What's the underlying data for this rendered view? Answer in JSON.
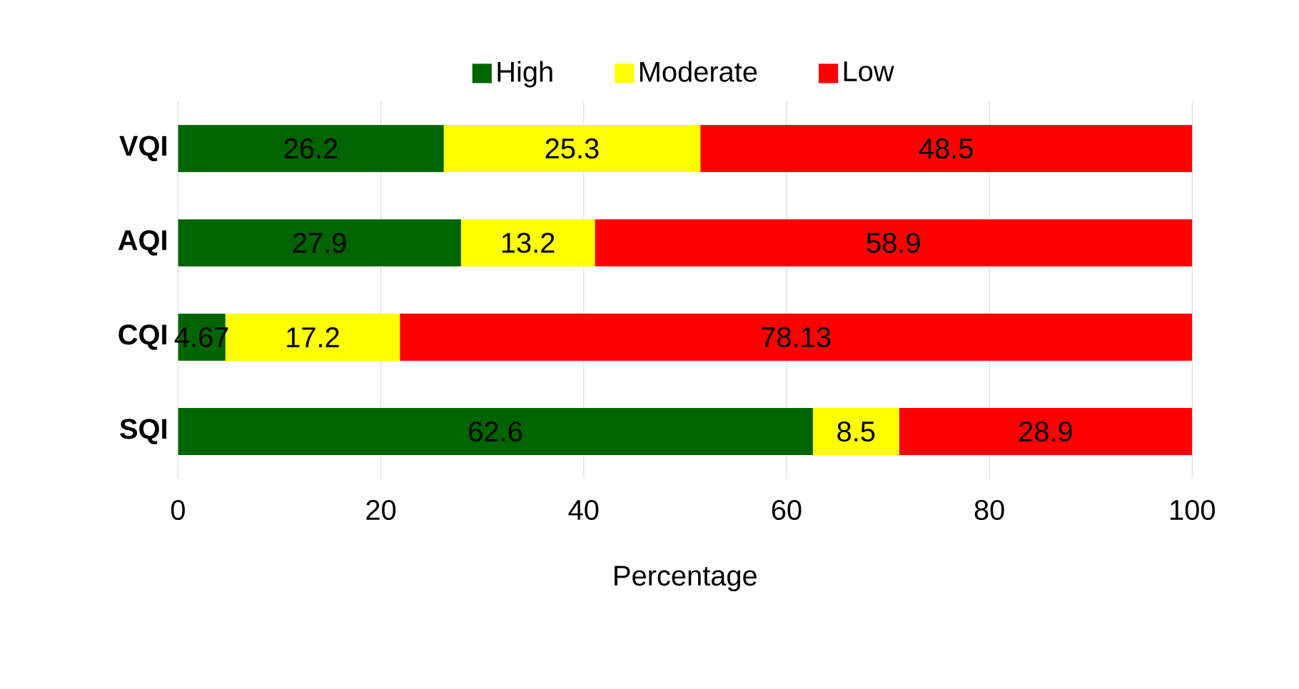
{
  "chart_data": {
    "type": "bar",
    "orientation": "horizontal",
    "stacked": true,
    "xlabel": "Percentage",
    "categories": [
      "VQI",
      "AQI",
      "CQI",
      "SQI"
    ],
    "series": [
      {
        "name": "High",
        "color": "#006400",
        "values": [
          26.2,
          27.9,
          4.67,
          62.6
        ]
      },
      {
        "name": "Moderate",
        "color": "#ffff00",
        "values": [
          25.3,
          13.2,
          17.2,
          8.5
        ]
      },
      {
        "name": "Low",
        "color": "#ff0000",
        "values": [
          48.5,
          58.9,
          78.13,
          28.9
        ]
      }
    ],
    "xlim": [
      0,
      100
    ],
    "xticks": [
      0,
      20,
      40,
      60,
      80,
      100
    ],
    "grid": "x",
    "legend": "top",
    "data_labels": true
  }
}
